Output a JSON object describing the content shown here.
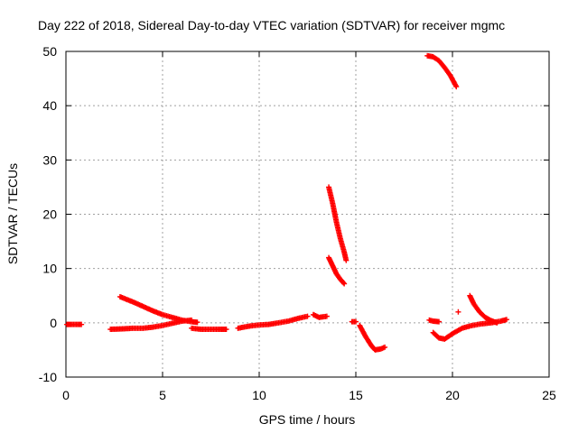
{
  "chart_data": {
    "type": "scatter",
    "title": "Day 222 of 2018, Sidereal Day-to-day VTEC variation (SDTVAR) for receiver mgmc",
    "xlabel": "GPS time / hours",
    "ylabel": "SDTVAR / TECUs",
    "xlim": [
      0,
      25
    ],
    "ylim": [
      -10,
      50
    ],
    "xticks": [
      0,
      5,
      10,
      15,
      20,
      25
    ],
    "yticks": [
      -10,
      0,
      10,
      20,
      30,
      40,
      50
    ],
    "grid": true,
    "marker": "+",
    "color": "#ff0000",
    "segments": [
      {
        "name": "track-1",
        "x": [
          0.05,
          0.2,
          0.4,
          0.6,
          0.8
        ],
        "y": [
          -0.3,
          -0.3,
          -0.3,
          -0.3,
          -0.3
        ]
      },
      {
        "name": "track-2",
        "x": [
          2.3,
          3.0,
          3.5,
          4.0,
          4.5,
          5.0,
          5.5,
          6.0,
          6.5
        ],
        "y": [
          -1.2,
          -1.1,
          -1.0,
          -1.0,
          -0.8,
          -0.5,
          -0.1,
          0.3,
          0.5
        ]
      },
      {
        "name": "track-3",
        "x": [
          2.8,
          3.5,
          4.0,
          4.5,
          5.0,
          5.5,
          6.0,
          6.5,
          6.8
        ],
        "y": [
          4.8,
          3.8,
          3.0,
          2.2,
          1.5,
          1.0,
          0.5,
          0.2,
          0.1
        ]
      },
      {
        "name": "track-4",
        "x": [
          6.5,
          7.0,
          7.5,
          8.0,
          8.3
        ],
        "y": [
          -1.0,
          -1.2,
          -1.2,
          -1.2,
          -1.2
        ]
      },
      {
        "name": "track-5",
        "x": [
          8.9,
          9.5,
          10.0,
          10.5,
          11.0,
          11.5,
          12.0,
          12.5
        ],
        "y": [
          -1.0,
          -0.6,
          -0.4,
          -0.3,
          0.0,
          0.3,
          0.8,
          1.2
        ]
      },
      {
        "name": "track-6",
        "x": [
          12.8,
          13.1,
          13.5
        ],
        "y": [
          1.5,
          1.0,
          1.2
        ]
      },
      {
        "name": "track-7",
        "x": [
          13.6,
          13.8,
          14.0,
          14.2,
          14.4,
          14.5
        ],
        "y": [
          25.0,
          22.0,
          18.5,
          15.5,
          13.0,
          11.5
        ]
      },
      {
        "name": "track-8",
        "x": [
          13.6,
          13.8,
          14.0,
          14.2,
          14.4
        ],
        "y": [
          12.0,
          10.5,
          9.0,
          8.0,
          7.2
        ]
      },
      {
        "name": "track-9",
        "x": [
          14.8,
          15.0
        ],
        "y": [
          0.2,
          0.2
        ]
      },
      {
        "name": "track-10",
        "x": [
          15.2,
          15.5,
          15.8,
          16.0,
          16.3,
          16.5
        ],
        "y": [
          -0.5,
          -2.5,
          -4.2,
          -5.0,
          -4.8,
          -4.5
        ]
      },
      {
        "name": "track-11",
        "x": [
          18.7,
          19.0,
          19.3,
          19.6,
          19.9,
          20.2
        ],
        "y": [
          49.2,
          49.0,
          48.3,
          47.0,
          45.5,
          43.5
        ]
      },
      {
        "name": "track-12",
        "x": [
          18.8,
          19.0,
          19.3
        ],
        "y": [
          0.5,
          0.3,
          0.2
        ]
      },
      {
        "name": "track-13",
        "x": [
          19.0,
          19.3,
          19.6,
          20.0,
          20.5,
          21.0,
          21.5,
          22.0,
          22.5,
          22.8
        ],
        "y": [
          -1.8,
          -2.8,
          -3.0,
          -2.0,
          -1.0,
          -0.5,
          -0.2,
          0.0,
          0.3,
          0.6
        ]
      },
      {
        "name": "track-14",
        "x": [
          20.3
        ],
        "y": [
          2.0
        ]
      },
      {
        "name": "track-15",
        "x": [
          20.9,
          21.1,
          21.4,
          21.7,
          22.0,
          22.3
        ],
        "y": [
          5.0,
          3.5,
          2.0,
          1.0,
          0.4,
          0.0
        ]
      }
    ]
  }
}
